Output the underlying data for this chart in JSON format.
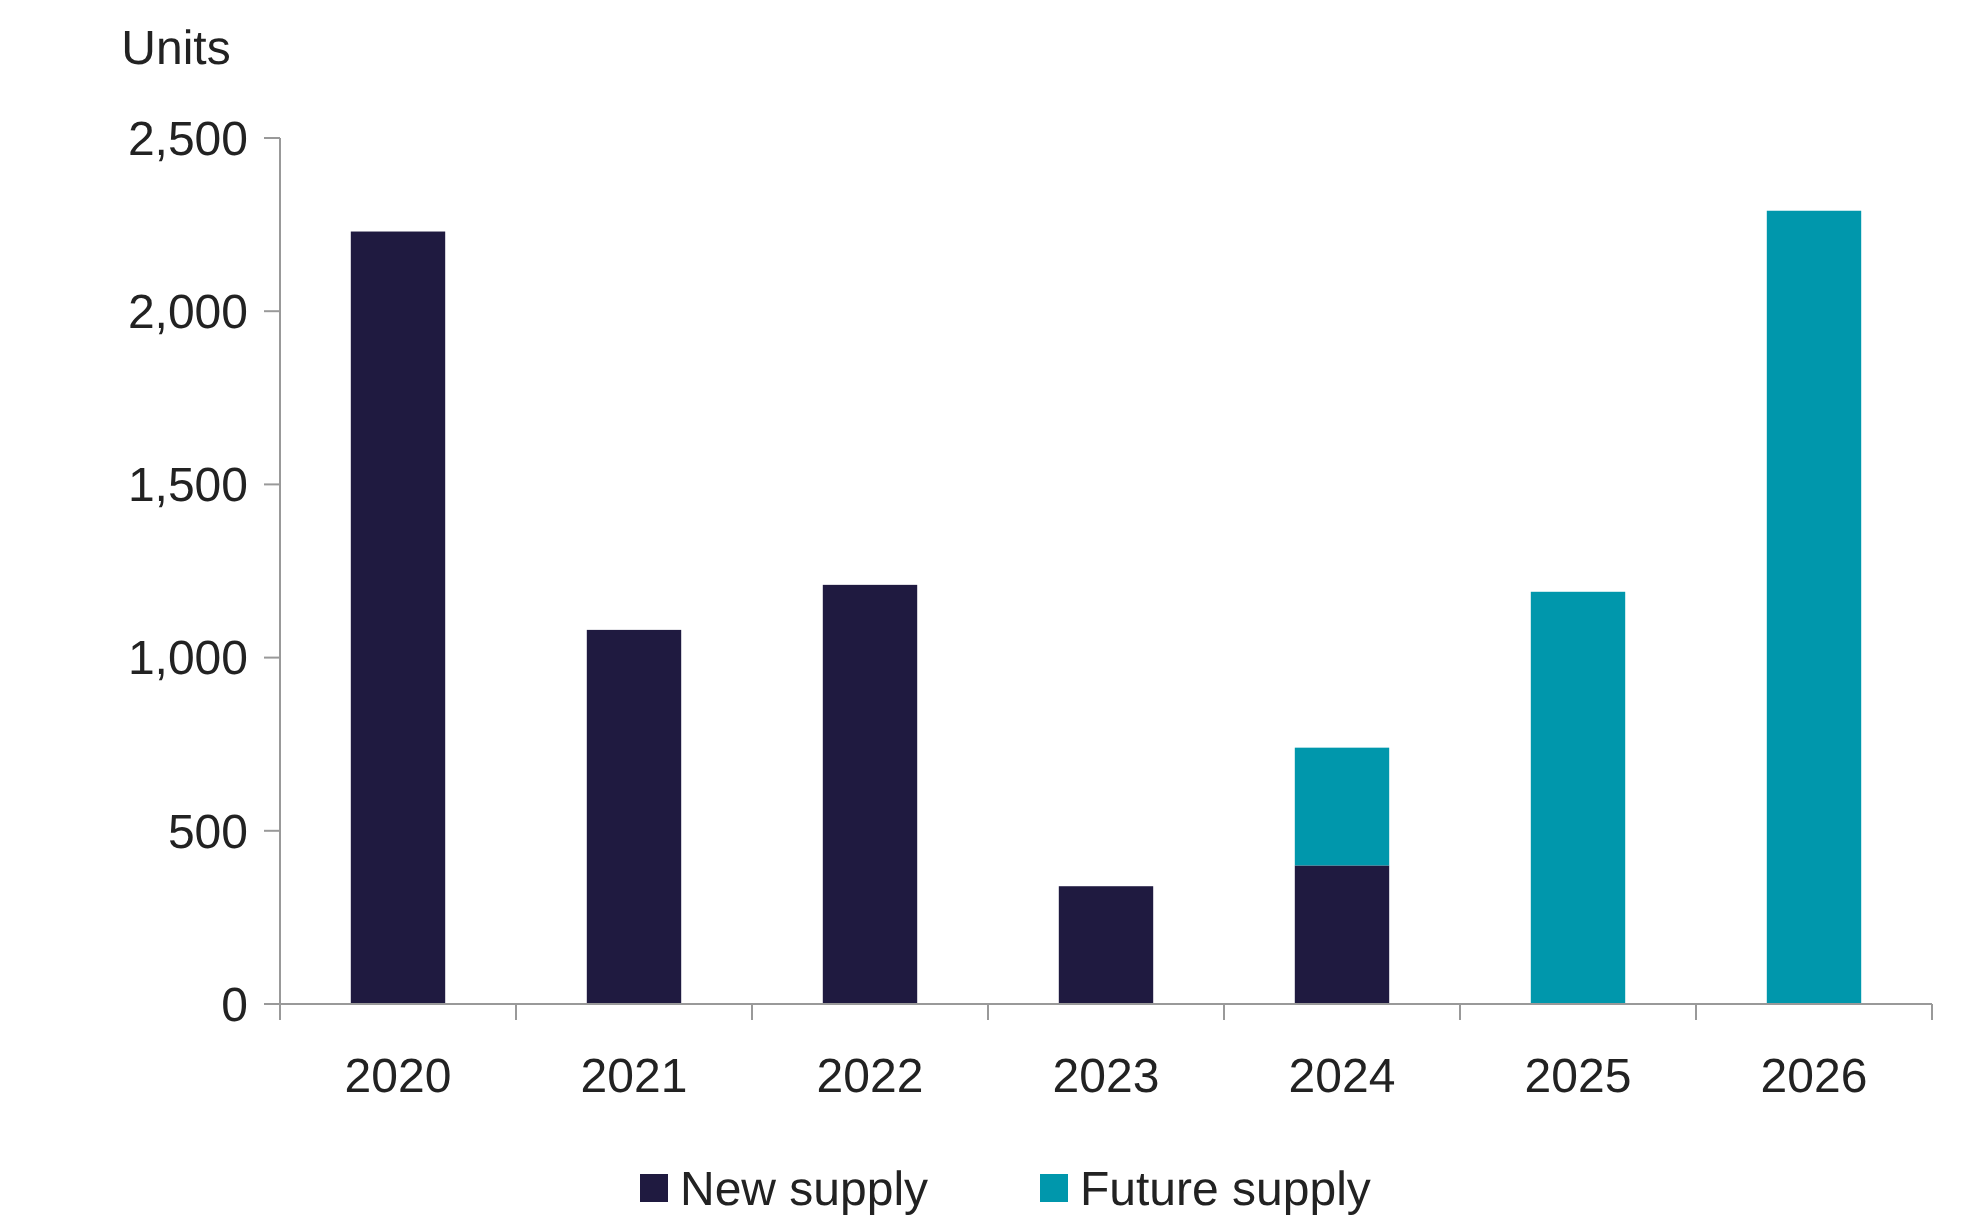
{
  "chart_data": {
    "type": "bar",
    "stacked": true,
    "ylabel": "Units",
    "categories": [
      "2020",
      "2021",
      "2022",
      "2023",
      "2024",
      "2025",
      "2026"
    ],
    "series": [
      {
        "name": "New supply",
        "color": "#1f1a40",
        "values": [
          2230,
          1080,
          1210,
          340,
          400,
          null,
          null
        ]
      },
      {
        "name": "Future supply",
        "color": "#0097ac",
        "values": [
          null,
          null,
          null,
          null,
          340,
          1190,
          2290
        ]
      }
    ],
    "ylim": [
      0,
      2500
    ],
    "yticks": [
      {
        "value": 0,
        "label": "0"
      },
      {
        "value": 500,
        "label": "500"
      },
      {
        "value": 1000,
        "label": "1,000"
      },
      {
        "value": 1500,
        "label": "1,500"
      },
      {
        "value": 2000,
        "label": "2,000"
      },
      {
        "value": 2500,
        "label": "2,500"
      }
    ],
    "grid": false,
    "legend": "bottom"
  }
}
